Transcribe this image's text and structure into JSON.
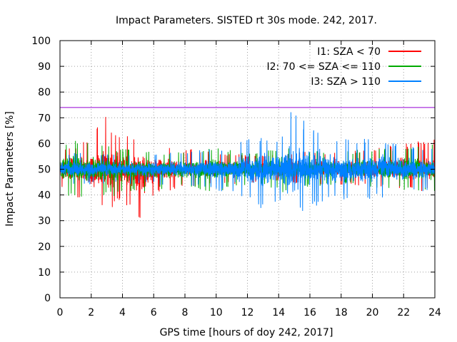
{
  "chart_data": {
    "type": "line",
    "title": "Impact Parameters. SISTED rt 30s mode. 242, 2017.",
    "xlabel": "GPS time [hours of doy 242, 2017]",
    "ylabel": "Impact Parameters [%]",
    "xlim": [
      0,
      24
    ],
    "ylim": [
      0,
      100
    ],
    "xticks": [
      0,
      2,
      4,
      6,
      8,
      10,
      12,
      14,
      16,
      18,
      20,
      22,
      24
    ],
    "yticks": [
      0,
      10,
      20,
      30,
      40,
      50,
      60,
      70,
      80,
      90,
      100
    ],
    "grid": true,
    "legend_position": "top-right",
    "threshold": {
      "value": 74,
      "color": "#9400d3"
    },
    "series": [
      {
        "name": "I1: SZA < 70",
        "color": "#ff0000",
        "x": [
          0,
          2,
          2.8,
          3.2,
          4,
          4.6,
          5.5,
          6,
          8,
          10,
          12,
          14,
          16,
          18,
          20,
          22,
          24
        ],
        "center": [
          50,
          50,
          50,
          50,
          50,
          50,
          50,
          50,
          50,
          50,
          50,
          50,
          50,
          50,
          50,
          50,
          50
        ],
        "upper": [
          58,
          62,
          73,
          66,
          64,
          63,
          60,
          60,
          58,
          57,
          56,
          56,
          57,
          57,
          58,
          60,
          62
        ],
        "lower": [
          42,
          36,
          35,
          33,
          38,
          32,
          28,
          40,
          43,
          44,
          44,
          45,
          44,
          44,
          43,
          42,
          41
        ]
      },
      {
        "name": "I2: 70 <= SZA <= 110",
        "color": "#00aa00",
        "x": [
          0,
          2,
          4,
          6,
          8,
          10,
          12,
          14,
          14.2,
          15,
          16,
          18,
          20,
          22,
          24
        ],
        "center": [
          50,
          50,
          50,
          50,
          50,
          50,
          50,
          50,
          50,
          50,
          50,
          50,
          50,
          50,
          50
        ],
        "upper": [
          62,
          61,
          58,
          57,
          57,
          59,
          57,
          58,
          60,
          58,
          57,
          57,
          58,
          59,
          60
        ],
        "lower": [
          40,
          38,
          40,
          42,
          43,
          41,
          44,
          42,
          40,
          43,
          43,
          44,
          43,
          42,
          40
        ]
      },
      {
        "name": "I3: SZA > 110",
        "color": "#0080ff",
        "x": [
          0,
          2,
          4,
          6,
          8,
          10,
          12,
          13,
          14,
          14.5,
          14.8,
          15.5,
          16,
          17,
          18,
          20,
          22,
          24
        ],
        "center": [
          50,
          50,
          50,
          50,
          50,
          50,
          50,
          50,
          50,
          50,
          50,
          50,
          50,
          50,
          50,
          50,
          50,
          50
        ],
        "upper": [
          57,
          56,
          56,
          56,
          57,
          58,
          62,
          64,
          62,
          67,
          73,
          70,
          66,
          64,
          62,
          62,
          60,
          58
        ],
        "lower": [
          43,
          44,
          44,
          44,
          43,
          42,
          38,
          34,
          38,
          31,
          30,
          33,
          34,
          37,
          38,
          38,
          40,
          42
        ]
      }
    ]
  }
}
